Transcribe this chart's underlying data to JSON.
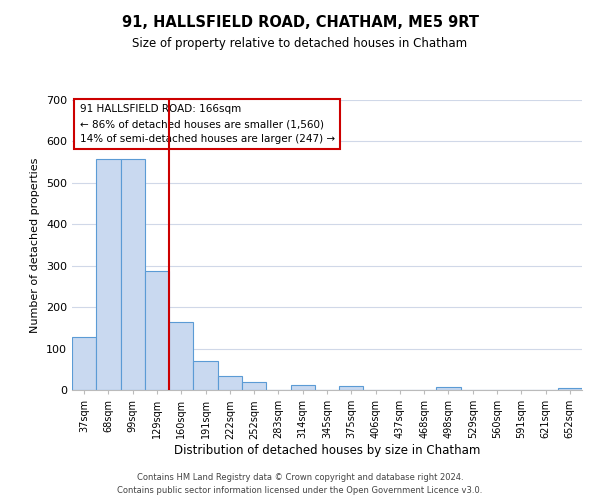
{
  "title": "91, HALLSFIELD ROAD, CHATHAM, ME5 9RT",
  "subtitle": "Size of property relative to detached houses in Chatham",
  "xlabel": "Distribution of detached houses by size in Chatham",
  "ylabel": "Number of detached properties",
  "bar_labels": [
    "37sqm",
    "68sqm",
    "99sqm",
    "129sqm",
    "160sqm",
    "191sqm",
    "222sqm",
    "252sqm",
    "283sqm",
    "314sqm",
    "345sqm",
    "375sqm",
    "406sqm",
    "437sqm",
    "468sqm",
    "498sqm",
    "529sqm",
    "560sqm",
    "591sqm",
    "621sqm",
    "652sqm"
  ],
  "bar_values": [
    128,
    557,
    557,
    287,
    165,
    70,
    34,
    20,
    0,
    12,
    0,
    10,
    0,
    0,
    0,
    8,
    0,
    0,
    0,
    0,
    4
  ],
  "bar_color": "#c9d9f0",
  "bar_edge_color": "#5b9bd5",
  "vline_x_index": 4,
  "vline_color": "#cc0000",
  "ylim": [
    0,
    700
  ],
  "yticks": [
    0,
    100,
    200,
    300,
    400,
    500,
    600,
    700
  ],
  "annotation_title": "91 HALLSFIELD ROAD: 166sqm",
  "annotation_line1": "← 86% of detached houses are smaller (1,560)",
  "annotation_line2": "14% of semi-detached houses are larger (247) →",
  "annotation_box_color": "#ffffff",
  "annotation_box_edge_color": "#cc0000",
  "footer_line1": "Contains HM Land Registry data © Crown copyright and database right 2024.",
  "footer_line2": "Contains public sector information licensed under the Open Government Licence v3.0.",
  "background_color": "#ffffff",
  "grid_color": "#d0d8e8"
}
